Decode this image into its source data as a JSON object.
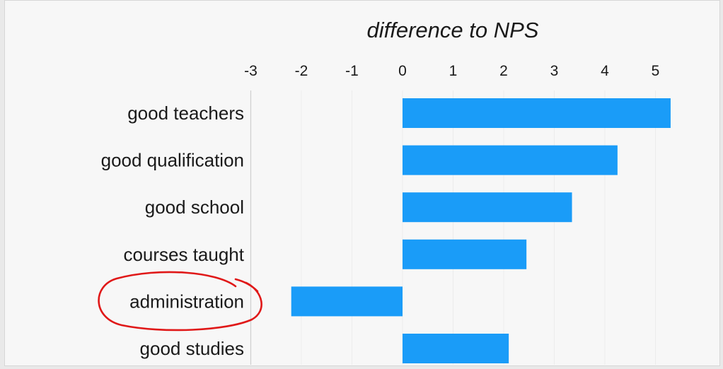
{
  "chart_data": {
    "type": "bar",
    "orientation": "horizontal",
    "title": "difference to NPS",
    "xlabel": "",
    "ylabel": "",
    "xlim": [
      -3,
      5.4
    ],
    "ticks": [
      -3,
      -2,
      -1,
      0,
      1,
      2,
      3,
      4,
      5
    ],
    "tick_labels": [
      "-3",
      "-2",
      "-1",
      "0",
      "1",
      "2",
      "3",
      "4",
      "5"
    ],
    "categories": [
      "good teachers",
      "good qualification",
      "good school",
      "courses taught",
      "administration",
      "good studies"
    ],
    "values": [
      5.3,
      4.25,
      3.35,
      2.45,
      -2.2,
      2.1
    ],
    "bar_color": "#1a9cf8",
    "grid": true,
    "highlight": {
      "category": "administration",
      "style": "hand-drawn circle",
      "color": "#e01818"
    }
  }
}
